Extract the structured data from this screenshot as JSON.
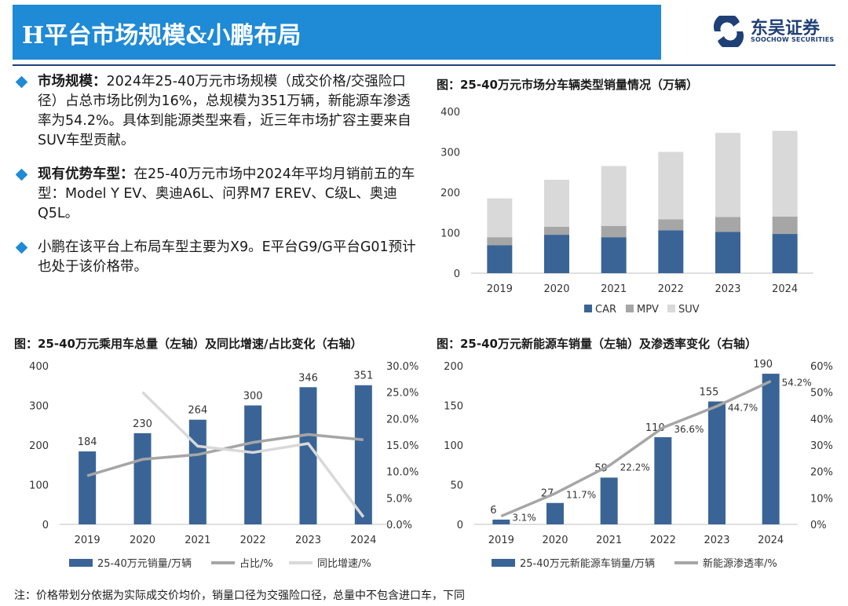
{
  "header": {
    "title": "H平台市场规模&小鹏布局"
  },
  "logo": {
    "name": "东吴证券",
    "subtitle": "SOOCHOW SECURITIES"
  },
  "bullets": [
    {
      "head": "市场规模：",
      "text": "2024年25-40万元市场规模（成交价格/交强险口径）占总市场比例为16%，总规模为351万辆，新能源车渗透率为54.2%。具体到能源类型来看，近三年市场扩容主要来自SUV车型贡献。"
    },
    {
      "head": "现有优势车型：",
      "text": "在25-40万元市场中2024年平均月销前五的车型：Model Y EV、奥迪A6L、问界M7 EREV、C级L、奥迪Q5L。"
    },
    {
      "head": "",
      "text": "小鹏在该平台上布局车型主要为X9。E平台G9/G平台G01预计也处于该价格带。"
    }
  ],
  "note": "注：价格带划分依据为实际成交价均价，销量口径为交强险口径，总量中不包含进口车，下同",
  "chart_data": [
    {
      "type": "bar",
      "stacked": true,
      "title": "图：25-40万元市场分车辆类型销量情况（万辆）",
      "categories": [
        "2019",
        "2020",
        "2021",
        "2022",
        "2023",
        "2024"
      ],
      "series": [
        {
          "name": "CAR",
          "color": "#3a6496",
          "values": [
            69,
            95,
            89,
            106,
            102,
            97
          ]
        },
        {
          "name": "MPV",
          "color": "#a6a6a6",
          "values": [
            20,
            20,
            28,
            27,
            37,
            43
          ]
        },
        {
          "name": "SUV",
          "color": "#d9d9d9",
          "values": [
            96,
            116,
            148,
            167,
            208,
            212
          ]
        }
      ],
      "ylim": [
        0,
        400
      ],
      "yticks": [
        0,
        100,
        200,
        300,
        400
      ],
      "legend": "bottom"
    },
    {
      "type": "bar",
      "title": "图：25-40万元乘用车总量（左轴）及同比增速/占比变化（右轴）",
      "categories": [
        "2019",
        "2020",
        "2021",
        "2022",
        "2023",
        "2024"
      ],
      "series": [
        {
          "name": "25-40万元销量/万辆",
          "kind": "bar",
          "axis": "left",
          "color": "#3a6496",
          "values": [
            184,
            230,
            264,
            300,
            346,
            351
          ],
          "labels": [
            "184",
            "230",
            "264",
            "300",
            "346",
            "351"
          ]
        },
        {
          "name": "占比/%",
          "kind": "line",
          "axis": "right",
          "color": "#a6a6a6",
          "values": [
            9.2,
            12.3,
            13.2,
            15.5,
            17.0,
            16.0
          ]
        },
        {
          "name": "同比增速/%",
          "kind": "line",
          "axis": "right",
          "color": "#d9d9d9",
          "values": [
            null,
            25.0,
            14.8,
            13.6,
            15.3,
            1.4
          ]
        }
      ],
      "ylim": [
        0,
        400
      ],
      "yticks": [
        0,
        100,
        200,
        300,
        400
      ],
      "y2lim": [
        0,
        30
      ],
      "y2ticks": [
        "0.0%",
        "5.0%",
        "10.0%",
        "15.0%",
        "20.0%",
        "25.0%",
        "30.0%"
      ],
      "legend": "bottom"
    },
    {
      "type": "bar",
      "title": "图：25-40万元新能源车销量（左轴）及渗透率变化（右轴）",
      "categories": [
        "2019",
        "2020",
        "2021",
        "2022",
        "2023",
        "2024"
      ],
      "series": [
        {
          "name": "25-40万元新能源车销量/万辆",
          "kind": "bar",
          "axis": "left",
          "color": "#3a6496",
          "values": [
            6,
            27,
            59,
            110,
            155,
            190
          ],
          "labels": [
            "6",
            "27",
            "59",
            "110",
            "155",
            "190"
          ]
        },
        {
          "name": "新能源渗透率/%",
          "kind": "line",
          "axis": "right",
          "color": "#a6a6a6",
          "values": [
            3.1,
            11.7,
            22.2,
            36.6,
            44.7,
            54.2
          ],
          "labels": [
            "3.1%",
            "11.7%",
            "22.2%",
            "36.6%",
            "44.7%",
            "54.2%"
          ]
        }
      ],
      "ylim": [
        0,
        200
      ],
      "yticks": [
        0,
        50,
        100,
        150,
        200
      ],
      "y2lim": [
        0,
        60
      ],
      "y2ticks": [
        "0%",
        "10%",
        "20%",
        "30%",
        "40%",
        "50%",
        "60%"
      ],
      "legend": "bottom"
    }
  ]
}
